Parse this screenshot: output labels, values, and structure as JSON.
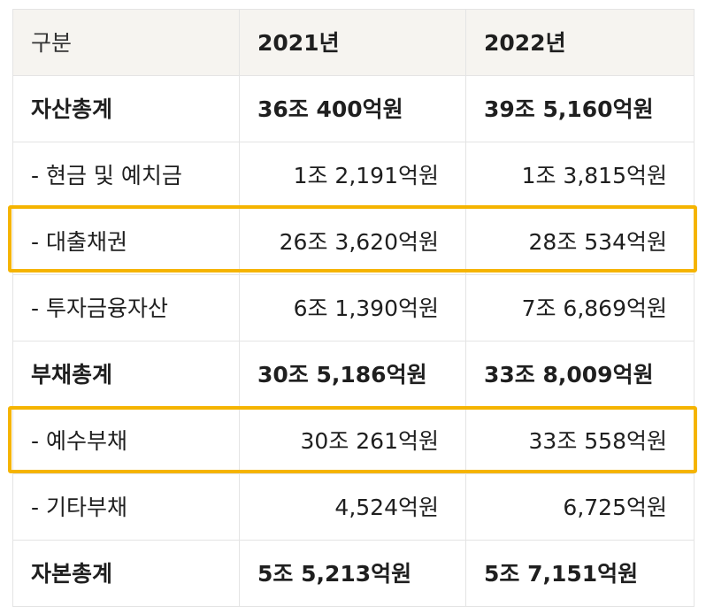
{
  "table": {
    "headers": [
      "구분",
      "2021년",
      "2022년"
    ],
    "rows": [
      {
        "label": "자산총계",
        "y2021": "36조 400억원",
        "y2022": "39조 5,160억원",
        "bold": true,
        "highlighted": false
      },
      {
        "label": "- 현금 및 예치금",
        "y2021": "1조 2,191억원",
        "y2022": "1조 3,815억원",
        "bold": false,
        "highlighted": false
      },
      {
        "label": "- 대출채권",
        "y2021": "26조 3,620억원",
        "y2022": "28조 534억원",
        "bold": false,
        "highlighted": true
      },
      {
        "label": "- 투자금융자산",
        "y2021": "6조 1,390억원",
        "y2022": "7조 6,869억원",
        "bold": false,
        "highlighted": false
      },
      {
        "label": "부채총계",
        "y2021": "30조 5,186억원",
        "y2022": "33조 8,009억원",
        "bold": true,
        "highlighted": false
      },
      {
        "label": "- 예수부채",
        "y2021": "30조 261억원",
        "y2022": "33조 558억원",
        "bold": false,
        "highlighted": true
      },
      {
        "label": "- 기타부채",
        "y2021": "4,524억원",
        "y2022": "6,725억원",
        "bold": false,
        "highlighted": false
      },
      {
        "label": "자본총계",
        "y2021": "5조 5,213억원",
        "y2022": "5조 7,151억원",
        "bold": true,
        "highlighted": false
      }
    ]
  },
  "colors": {
    "highlight": "#f5b400",
    "header_bg": "#f6f4f0",
    "border": "#e4e4e4"
  }
}
